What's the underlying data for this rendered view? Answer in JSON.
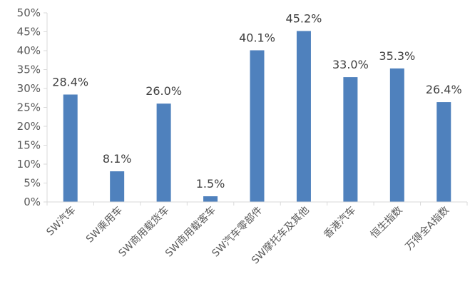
{
  "chart_data": {
    "type": "bar",
    "title": "",
    "xlabel": "",
    "ylabel": "",
    "categories": [
      "SW汽车",
      "SW乘用车",
      "SW商用载货车",
      "SW商用载客车",
      "SW汽车零部件",
      "SW摩托车及其他",
      "香港汽车",
      "恒生指数",
      "万得全A指数"
    ],
    "values": [
      28.4,
      8.1,
      26.0,
      1.5,
      40.1,
      45.2,
      33.0,
      35.3,
      26.4
    ],
    "data_labels": [
      "28.4%",
      "8.1%",
      "26.0%",
      "1.5%",
      "40.1%",
      "45.2%",
      "33.0%",
      "35.3%",
      "26.4%"
    ],
    "y_ticks": [
      "0%",
      "5%",
      "10%",
      "15%",
      "20%",
      "25%",
      "30%",
      "35%",
      "40%",
      "45%",
      "50%"
    ],
    "ylim": [
      0,
      50
    ],
    "grid": false,
    "legend": "none",
    "bar_color": "#4F81BD",
    "axis_color": "#D9D9D9"
  }
}
